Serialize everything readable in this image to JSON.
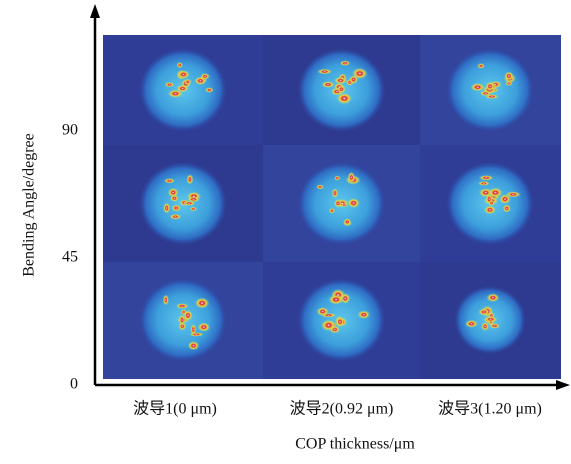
{
  "chart_data": {
    "type": "image-grid",
    "x_label": "COP thickness/μm",
    "y_label": "Bending Angle/degree",
    "categories": [
      "波导1(0 μm)",
      "波导2(0.92 μm)",
      "波导3(1.20 μm)"
    ],
    "ylim": [
      0,
      135
    ],
    "yticks": [
      0,
      45,
      90
    ]
  }
}
